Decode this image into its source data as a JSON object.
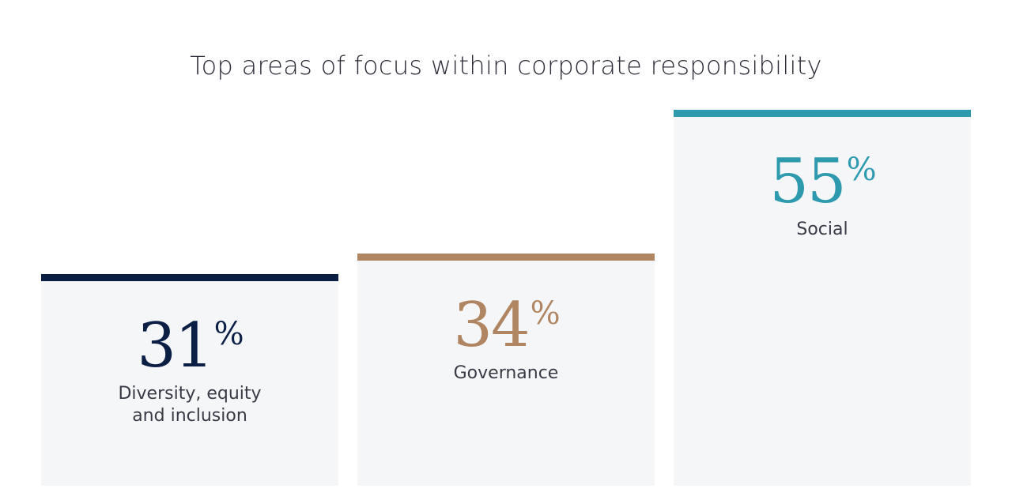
{
  "chart_data": {
    "type": "bar",
    "title": "Top areas of focus within corporate responsibility",
    "categories": [
      "Diversity, equity\nand inclusion",
      "Governance",
      "Social"
    ],
    "values": [
      31,
      34,
      55
    ],
    "value_suffix": "%",
    "colors": [
      "#0b1f44",
      "#b08562",
      "#2e9aae"
    ],
    "ylim": [
      0,
      60
    ],
    "grid": false
  }
}
